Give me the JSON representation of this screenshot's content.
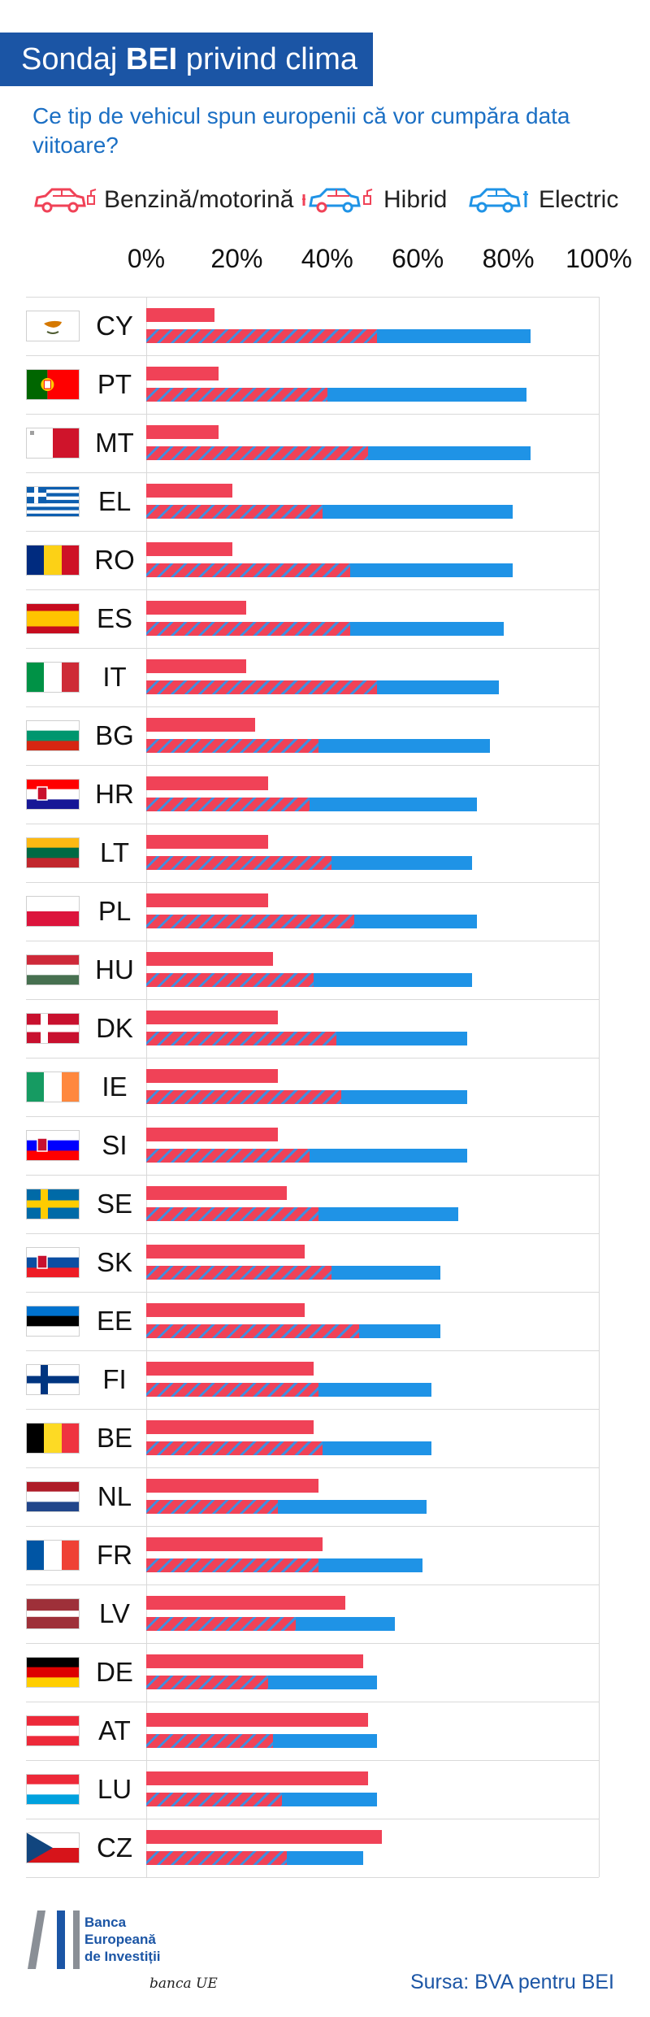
{
  "header": {
    "title_pre": "Sondaj ",
    "title_bold": "BEI",
    "title_post": " privind clima",
    "subtitle": "Ce tip de vehicul spun europenii că vor cumpăra data viitoare?"
  },
  "legend": [
    {
      "label": "Benzină/motorină",
      "icon": "petrol-car-icon",
      "color": "#f04257"
    },
    {
      "label": "Hibrid",
      "icon": "hybrid-car-icon",
      "color": "#f04257"
    },
    {
      "label": "Electric",
      "icon": "electric-car-icon",
      "color": "#1f93e6"
    }
  ],
  "colors": {
    "petrol": "#f04257",
    "electric": "#1f93e6",
    "hybrid_stripe": "#3f8fe0",
    "brand": "#1b55a5"
  },
  "chart_data": {
    "type": "bar",
    "orientation": "horizontal",
    "xlim": [
      0,
      100
    ],
    "x_ticks": [
      "0%",
      "20%",
      "40%",
      "60%",
      "80%",
      "100%"
    ],
    "grid": true,
    "note": "",
    "rows": [
      {
        "code": "CY",
        "flag": "cyprus-flag-icon",
        "petrol": 15,
        "hybrid_end": 51,
        "electric_end": 85
      },
      {
        "code": "PT",
        "flag": "portugal-flag-icon",
        "petrol": 16,
        "hybrid_end": 40,
        "electric_end": 84
      },
      {
        "code": "MT",
        "flag": "malta-flag-icon",
        "petrol": 16,
        "hybrid_end": 49,
        "electric_end": 85
      },
      {
        "code": "EL",
        "flag": "greece-flag-icon",
        "petrol": 19,
        "hybrid_end": 39,
        "electric_end": 81
      },
      {
        "code": "RO",
        "flag": "romania-flag-icon",
        "petrol": 19,
        "hybrid_end": 45,
        "electric_end": 81
      },
      {
        "code": "ES",
        "flag": "spain-flag-icon",
        "petrol": 22,
        "hybrid_end": 45,
        "electric_end": 79
      },
      {
        "code": "IT",
        "flag": "italy-flag-icon",
        "petrol": 22,
        "hybrid_end": 51,
        "electric_end": 78
      },
      {
        "code": "BG",
        "flag": "bulgaria-flag-icon",
        "petrol": 24,
        "hybrid_end": 38,
        "electric_end": 76
      },
      {
        "code": "HR",
        "flag": "croatia-flag-icon",
        "petrol": 27,
        "hybrid_end": 36,
        "electric_end": 73
      },
      {
        "code": "LT",
        "flag": "lithuania-flag-icon",
        "petrol": 27,
        "hybrid_end": 41,
        "electric_end": 72
      },
      {
        "code": "PL",
        "flag": "poland-flag-icon",
        "petrol": 27,
        "hybrid_end": 46,
        "electric_end": 73
      },
      {
        "code": "HU",
        "flag": "hungary-flag-icon",
        "petrol": 28,
        "hybrid_end": 37,
        "electric_end": 72
      },
      {
        "code": "DK",
        "flag": "denmark-flag-icon",
        "petrol": 29,
        "hybrid_end": 42,
        "electric_end": 71
      },
      {
        "code": "IE",
        "flag": "ireland-flag-icon",
        "petrol": 29,
        "hybrid_end": 43,
        "electric_end": 71
      },
      {
        "code": "SI",
        "flag": "slovenia-flag-icon",
        "petrol": 29,
        "hybrid_end": 36,
        "electric_end": 71
      },
      {
        "code": "SE",
        "flag": "sweden-flag-icon",
        "petrol": 31,
        "hybrid_end": 38,
        "electric_end": 69
      },
      {
        "code": "SK",
        "flag": "slovakia-flag-icon",
        "petrol": 35,
        "hybrid_end": 41,
        "electric_end": 65
      },
      {
        "code": "EE",
        "flag": "estonia-flag-icon",
        "petrol": 35,
        "hybrid_end": 47,
        "electric_end": 65
      },
      {
        "code": "FI",
        "flag": "finland-flag-icon",
        "petrol": 37,
        "hybrid_end": 38,
        "electric_end": 63
      },
      {
        "code": "BE",
        "flag": "belgium-flag-icon",
        "petrol": 37,
        "hybrid_end": 39,
        "electric_end": 63
      },
      {
        "code": "NL",
        "flag": "netherlands-flag-icon",
        "petrol": 38,
        "hybrid_end": 29,
        "electric_end": 62
      },
      {
        "code": "FR",
        "flag": "france-flag-icon",
        "petrol": 39,
        "hybrid_end": 38,
        "electric_end": 61
      },
      {
        "code": "LV",
        "flag": "latvia-flag-icon",
        "petrol": 44,
        "hybrid_end": 33,
        "electric_end": 55
      },
      {
        "code": "DE",
        "flag": "germany-flag-icon",
        "petrol": 48,
        "hybrid_end": 27,
        "electric_end": 51
      },
      {
        "code": "AT",
        "flag": "austria-flag-icon",
        "petrol": 49,
        "hybrid_end": 28,
        "electric_end": 51
      },
      {
        "code": "LU",
        "flag": "luxembourg-flag-icon",
        "petrol": 49,
        "hybrid_end": 30,
        "electric_end": 51
      },
      {
        "code": "CZ",
        "flag": "czechia-flag-icon",
        "petrol": 52,
        "hybrid_end": 31,
        "electric_end": 48
      }
    ]
  },
  "footer": {
    "logo_lines": [
      "Banca",
      "Europeană",
      "de Investiții"
    ],
    "script": "banca UE",
    "source": "Sursa: BVA pentru BEI"
  }
}
